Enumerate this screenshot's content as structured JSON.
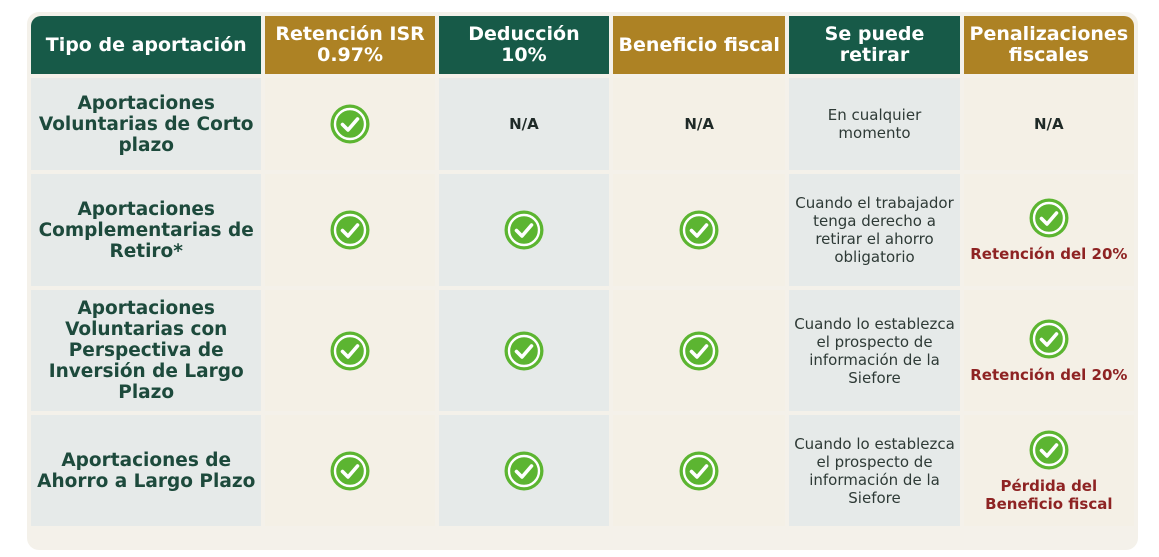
{
  "headers": {
    "type": "Tipo de aportación",
    "retention": "Retención ISR 0.97%",
    "deduction": "Deducción 10%",
    "benefit": "Beneficio fiscal",
    "withdraw": "Se puede retirar",
    "penalties": "Penalizaciones fiscales"
  },
  "icons": {
    "check": "check-circle-icon",
    "check_color": "#5cb531"
  },
  "colors": {
    "header_green": "#175a48",
    "header_gold": "#ad8224",
    "penalty_red": "#8e2323"
  },
  "rows": [
    {
      "type": "Aportaciones Voluntarias de Corto plazo",
      "deduction": "N/A",
      "benefit": "N/A",
      "withdraw": "En cualquier momento",
      "penalty": "N/A"
    },
    {
      "type": "Aportaciones Complementarias de Retiro*",
      "withdraw": "Cuando el trabajador tenga derecho a retirar el ahorro obligatorio",
      "penalty": "Retención del 20%"
    },
    {
      "type": "Aportaciones Voluntarias con Perspectiva de Inversión de Largo Plazo",
      "withdraw": "Cuando lo establezca el prospecto de información de la Siefore",
      "penalty": "Retención del 20%"
    },
    {
      "type": "Aportaciones de Ahorro a Largo Plazo",
      "withdraw": "Cuando lo establezca el prospecto de información de la Siefore",
      "penalty": "Pérdida del Beneficio fiscal"
    }
  ]
}
